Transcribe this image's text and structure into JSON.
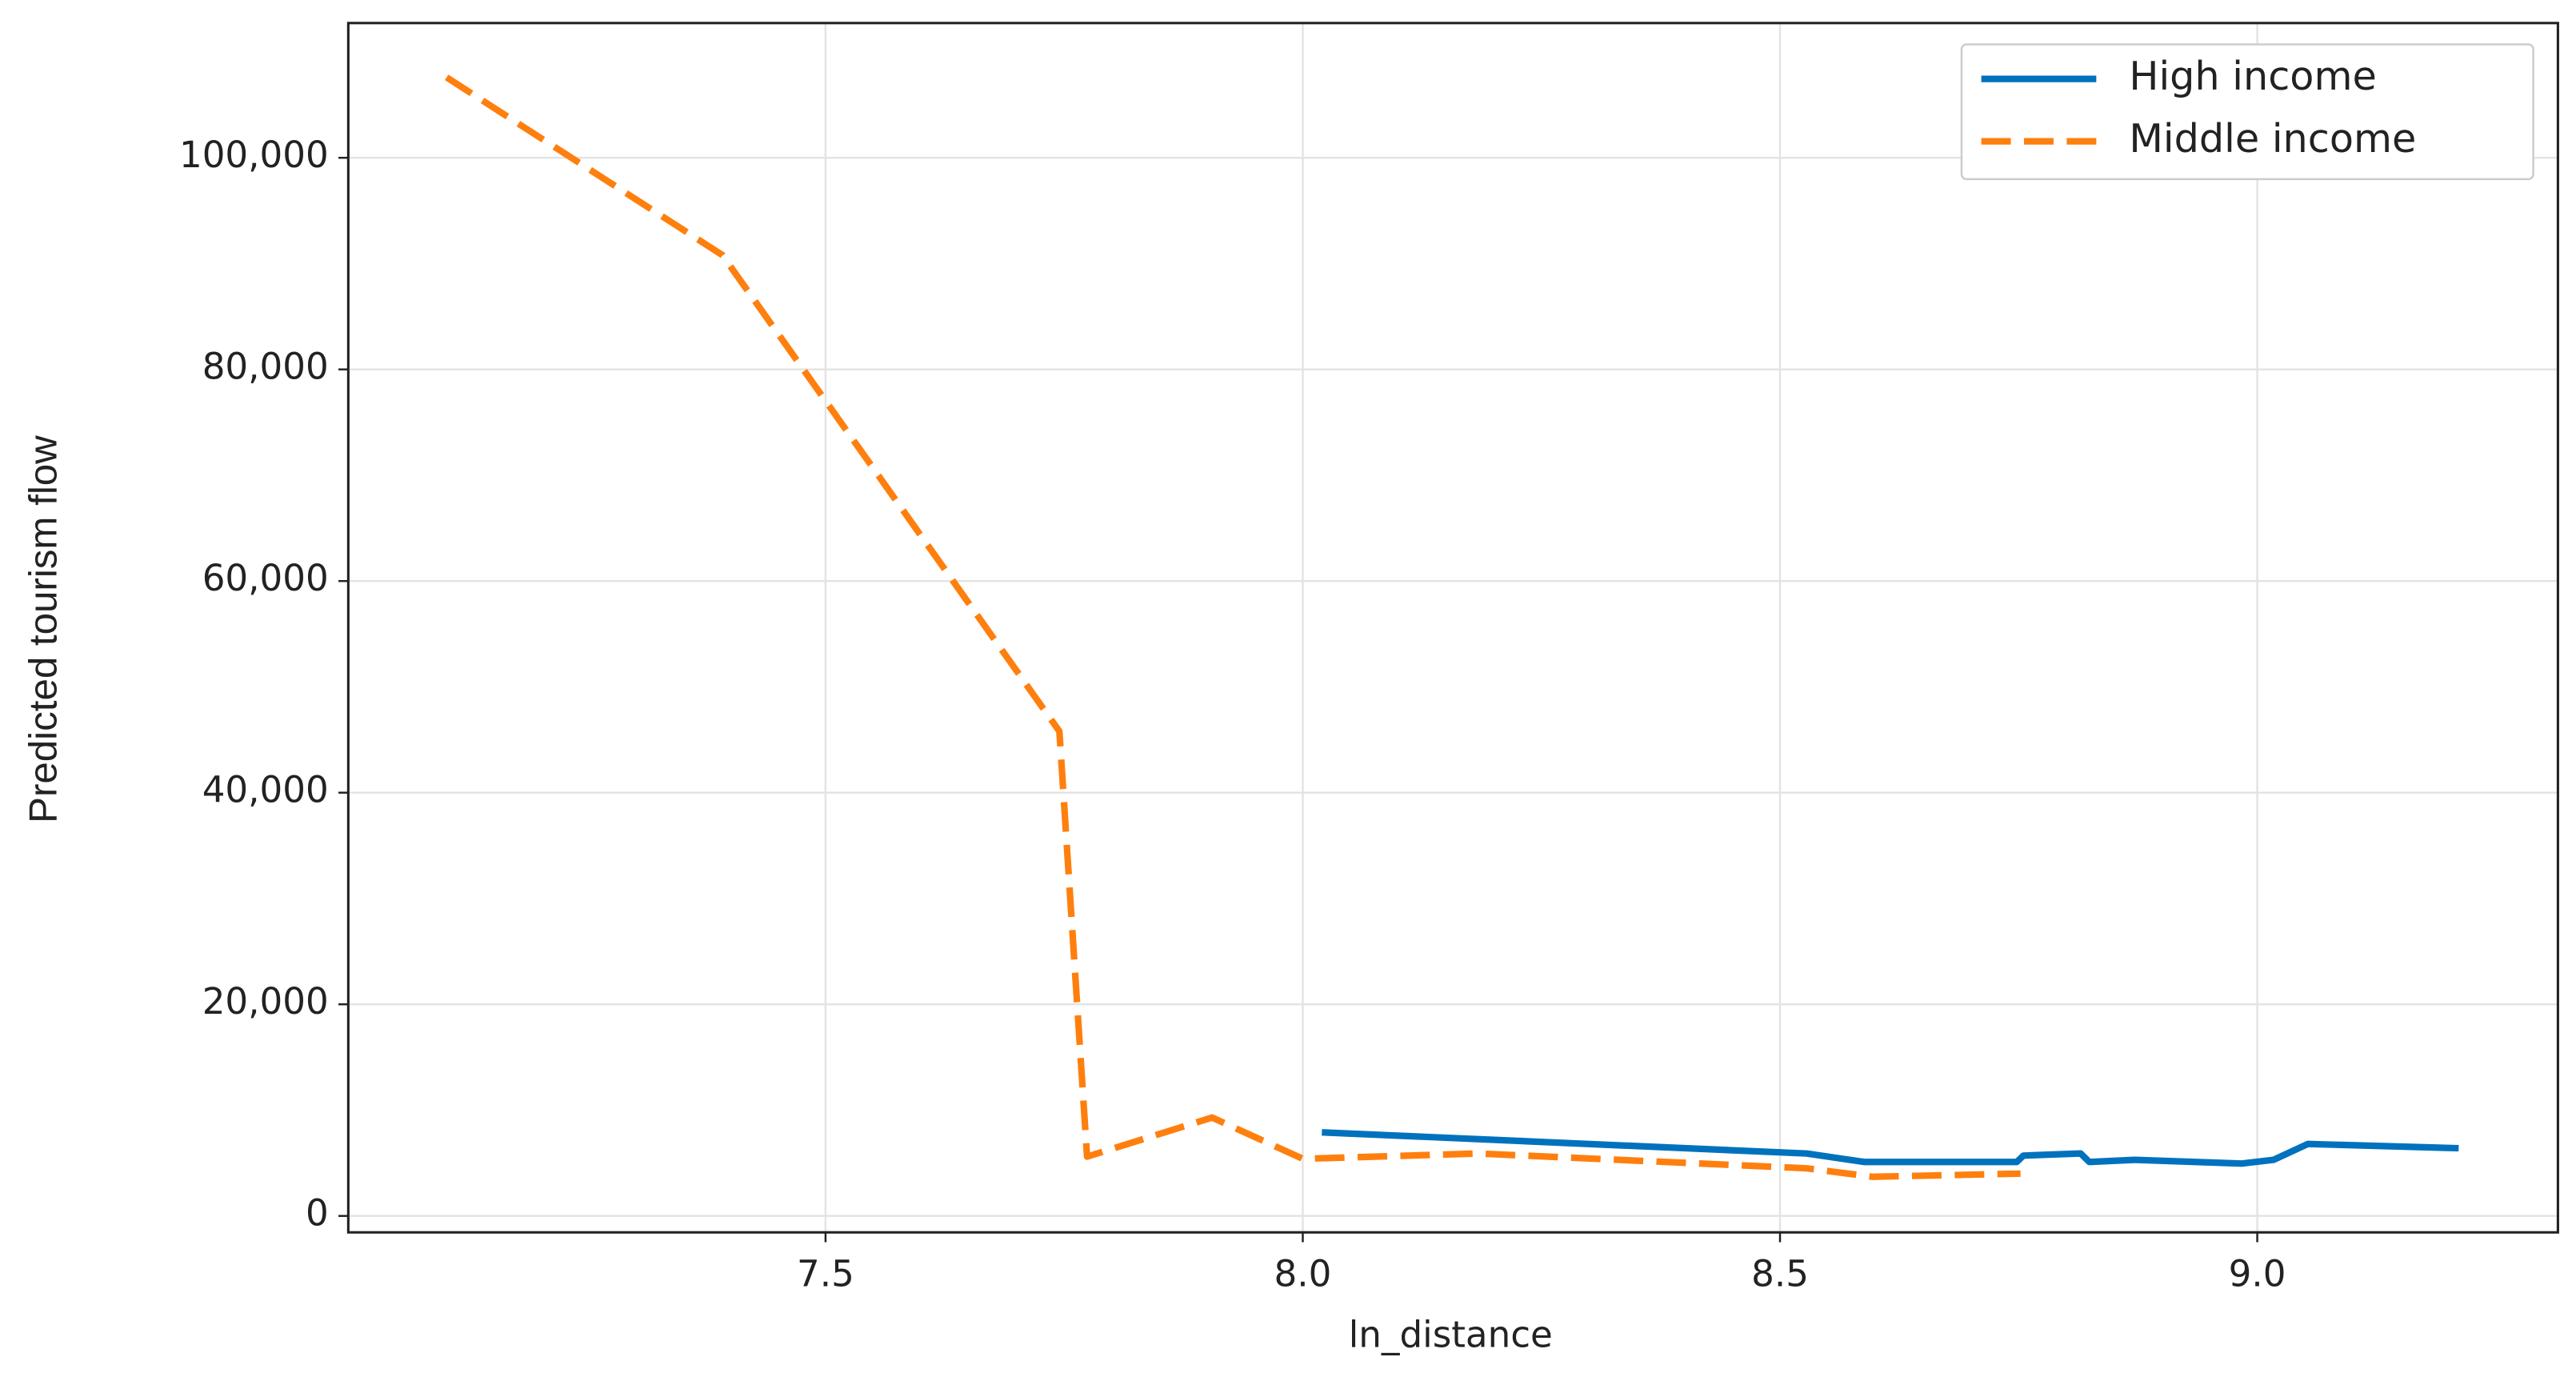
{
  "chart_data": {
    "type": "line",
    "xlabel": "ln_distance",
    "ylabel": "Predicted tourism flow",
    "series": [
      {
        "name": "High income",
        "color": "#0072bd",
        "dash": false,
        "x": [
          8.02,
          8.528,
          8.588,
          8.748,
          8.755,
          8.815,
          8.824,
          8.872,
          8.984,
          9.017,
          9.053,
          9.211
        ],
        "values": [
          7900,
          5900,
          5100,
          5100,
          5700,
          5900,
          5100,
          5300,
          4950,
          5300,
          6800,
          6400
        ]
      },
      {
        "name": "Middle income",
        "color": "#ff7f0e",
        "dash": true,
        "x": [
          7.103,
          7.392,
          7.745,
          7.774,
          7.905,
          8.0,
          8.184,
          8.528,
          8.597,
          8.752
        ],
        "values": [
          107600,
          90800,
          45800,
          5600,
          9300,
          5400,
          5900,
          4500,
          3700,
          4000
        ]
      }
    ],
    "xlim": [
      7.0,
      9.315
    ],
    "ylim": [
      -1553,
      112733
    ],
    "xticks": [
      {
        "value": 7.5,
        "label": "7.5"
      },
      {
        "value": 8.0,
        "label": "8.0"
      },
      {
        "value": 8.5,
        "label": "8.5"
      },
      {
        "value": 9.0,
        "label": "9.0"
      }
    ],
    "yticks": [
      0,
      {
        "value": 20000,
        "label": "20,000"
      },
      {
        "value": 40000,
        "label": "40,000"
      },
      {
        "value": 60000,
        "label": "60,000"
      },
      {
        "value": 80000,
        "label": "80,000"
      },
      {
        "value": 100000,
        "label": "100,000"
      }
    ],
    "grid": true,
    "legend": "upper-right"
  }
}
